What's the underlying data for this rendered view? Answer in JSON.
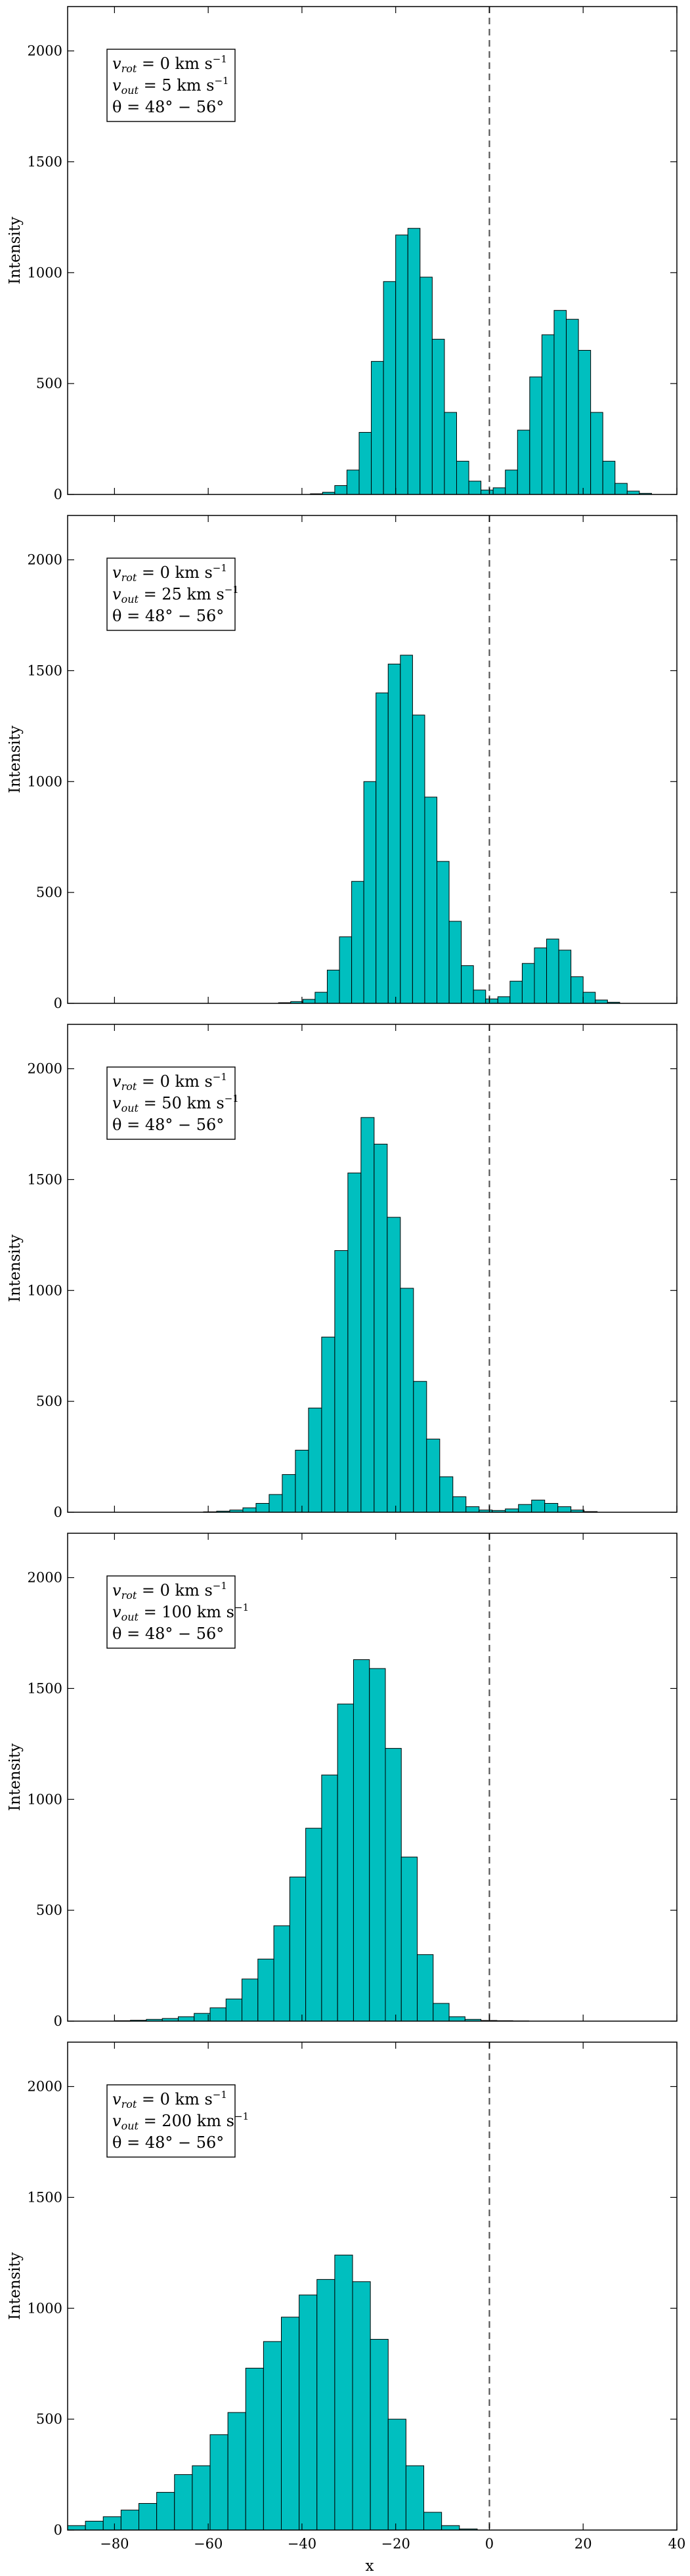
{
  "figure": {
    "xlabel": "x",
    "ylabel": "Intensity"
  },
  "chart_data": [
    {
      "type": "bar",
      "legend": {
        "vrot_value": " = 0 km s",
        "vout_value": " = 5 km s",
        "theta": "θ = 48° − 56°"
      },
      "xlim": [
        -90,
        40
      ],
      "ylim": [
        0,
        2200
      ],
      "xticks": [
        -80,
        -60,
        -40,
        -20,
        0,
        20,
        40
      ],
      "yticks": [
        0,
        500,
        1000,
        1500,
        2000
      ],
      "bin_width": 2.6,
      "bins": [
        [
          -38.2,
          3
        ],
        [
          -35.6,
          10
        ],
        [
          -33.0,
          40
        ],
        [
          -30.4,
          110
        ],
        [
          -27.8,
          280
        ],
        [
          -25.2,
          600
        ],
        [
          -22.6,
          960
        ],
        [
          -20.0,
          1170
        ],
        [
          -17.4,
          1200
        ],
        [
          -14.8,
          980
        ],
        [
          -12.2,
          700
        ],
        [
          -9.6,
          370
        ],
        [
          -7.0,
          150
        ],
        [
          -4.4,
          60
        ],
        [
          -1.8,
          20
        ],
        [
          0.8,
          30
        ],
        [
          3.4,
          110
        ],
        [
          6.0,
          290
        ],
        [
          8.6,
          530
        ],
        [
          11.2,
          720
        ],
        [
          13.8,
          830
        ],
        [
          16.4,
          790
        ],
        [
          19.0,
          650
        ],
        [
          21.6,
          370
        ],
        [
          24.2,
          150
        ],
        [
          26.8,
          50
        ],
        [
          29.4,
          15
        ],
        [
          32.0,
          5
        ]
      ]
    },
    {
      "type": "bar",
      "legend": {
        "vrot_value": " = 0 km s",
        "vout_value": " = 25 km s",
        "theta": "θ = 48° − 56°"
      },
      "xlim": [
        -90,
        40
      ],
      "ylim": [
        0,
        2200
      ],
      "xticks": [
        -80,
        -60,
        -40,
        -20,
        0,
        20,
        40
      ],
      "yticks": [
        0,
        500,
        1000,
        1500,
        2000
      ],
      "bin_width": 2.6,
      "bins": [
        [
          -45.0,
          3
        ],
        [
          -42.4,
          8
        ],
        [
          -39.8,
          18
        ],
        [
          -37.2,
          50
        ],
        [
          -34.6,
          150
        ],
        [
          -32.0,
          300
        ],
        [
          -29.4,
          550
        ],
        [
          -26.8,
          1000
        ],
        [
          -24.2,
          1400
        ],
        [
          -21.6,
          1530
        ],
        [
          -19.0,
          1570
        ],
        [
          -16.4,
          1300
        ],
        [
          -13.8,
          930
        ],
        [
          -11.2,
          640
        ],
        [
          -8.6,
          370
        ],
        [
          -6.0,
          170
        ],
        [
          -3.4,
          60
        ],
        [
          -0.8,
          20
        ],
        [
          1.8,
          30
        ],
        [
          4.4,
          100
        ],
        [
          7.0,
          180
        ],
        [
          9.6,
          250
        ],
        [
          12.2,
          290
        ],
        [
          14.8,
          240
        ],
        [
          17.4,
          120
        ],
        [
          20.0,
          50
        ],
        [
          22.6,
          15
        ],
        [
          25.2,
          5
        ]
      ]
    },
    {
      "type": "bar",
      "legend": {
        "vrot_value": " = 0 km s",
        "vout_value": " = 50 km s",
        "theta": "θ = 48° − 56°"
      },
      "xlim": [
        -90,
        40
      ],
      "ylim": [
        0,
        2200
      ],
      "xticks": [
        -80,
        -60,
        -40,
        -20,
        0,
        20,
        40
      ],
      "yticks": [
        0,
        500,
        1000,
        1500,
        2000
      ],
      "bin_width": 2.8,
      "bins": [
        [
          -61.0,
          2
        ],
        [
          -58.2,
          5
        ],
        [
          -55.4,
          10
        ],
        [
          -52.6,
          20
        ],
        [
          -49.8,
          40
        ],
        [
          -47.0,
          80
        ],
        [
          -44.2,
          170
        ],
        [
          -41.4,
          280
        ],
        [
          -38.6,
          470
        ],
        [
          -35.8,
          790
        ],
        [
          -33.0,
          1180
        ],
        [
          -30.2,
          1530
        ],
        [
          -27.4,
          1780
        ],
        [
          -24.6,
          1660
        ],
        [
          -21.8,
          1330
        ],
        [
          -19.0,
          1010
        ],
        [
          -16.2,
          590
        ],
        [
          -13.4,
          330
        ],
        [
          -10.6,
          160
        ],
        [
          -7.8,
          70
        ],
        [
          -5.0,
          25
        ],
        [
          -2.2,
          10
        ],
        [
          0.6,
          8
        ],
        [
          3.4,
          15
        ],
        [
          6.2,
          35
        ],
        [
          9.0,
          55
        ],
        [
          11.8,
          40
        ],
        [
          14.6,
          25
        ],
        [
          17.4,
          10
        ],
        [
          20.2,
          3
        ]
      ]
    },
    {
      "type": "bar",
      "legend": {
        "vrot_value": " = 0 km s",
        "vout_value": " = 100 km s",
        "theta": "θ = 48° − 56°"
      },
      "xlim": [
        -90,
        40
      ],
      "ylim": [
        0,
        2200
      ],
      "xticks": [
        -80,
        -60,
        -40,
        -20,
        0,
        20,
        40
      ],
      "yticks": [
        0,
        500,
        1000,
        1500,
        2000
      ],
      "bin_width": 3.4,
      "bins": [
        [
          -80.0,
          2
        ],
        [
          -76.6,
          4
        ],
        [
          -73.2,
          8
        ],
        [
          -69.8,
          12
        ],
        [
          -66.4,
          20
        ],
        [
          -63.0,
          35
        ],
        [
          -59.6,
          60
        ],
        [
          -56.2,
          100
        ],
        [
          -52.8,
          190
        ],
        [
          -49.4,
          280
        ],
        [
          -46.0,
          430
        ],
        [
          -42.6,
          650
        ],
        [
          -39.2,
          870
        ],
        [
          -35.8,
          1110
        ],
        [
          -32.4,
          1430
        ],
        [
          -29.0,
          1630
        ],
        [
          -25.6,
          1590
        ],
        [
          -22.2,
          1230
        ],
        [
          -18.8,
          740
        ],
        [
          -15.4,
          300
        ],
        [
          -12.0,
          80
        ],
        [
          -8.6,
          20
        ],
        [
          -5.2,
          8
        ],
        [
          -1.8,
          3
        ],
        [
          1.6,
          2
        ],
        [
          5.0,
          1
        ]
      ]
    },
    {
      "type": "bar",
      "legend": {
        "vrot_value": " = 0 km s",
        "vout_value": " = 200 km s",
        "theta": "θ = 48° − 56°"
      },
      "xlim": [
        -90,
        40
      ],
      "ylim": [
        0,
        2200
      ],
      "xticks": [
        -80,
        -60,
        -40,
        -20,
        0,
        20,
        40
      ],
      "yticks": [
        0,
        500,
        1000,
        1500,
        2000
      ],
      "bin_width": 3.8,
      "bins": [
        [
          -90.0,
          20
        ],
        [
          -86.2,
          40
        ],
        [
          -82.4,
          60
        ],
        [
          -78.6,
          90
        ],
        [
          -74.8,
          120
        ],
        [
          -71.0,
          170
        ],
        [
          -67.2,
          250
        ],
        [
          -63.4,
          290
        ],
        [
          -59.6,
          430
        ],
        [
          -55.8,
          530
        ],
        [
          -52.0,
          730
        ],
        [
          -48.2,
          850
        ],
        [
          -44.4,
          960
        ],
        [
          -40.6,
          1060
        ],
        [
          -36.8,
          1130
        ],
        [
          -33.0,
          1240
        ],
        [
          -29.2,
          1120
        ],
        [
          -25.4,
          860
        ],
        [
          -21.6,
          500
        ],
        [
          -17.8,
          290
        ],
        [
          -14.0,
          80
        ],
        [
          -10.2,
          20
        ],
        [
          -6.4,
          5
        ]
      ]
    }
  ]
}
